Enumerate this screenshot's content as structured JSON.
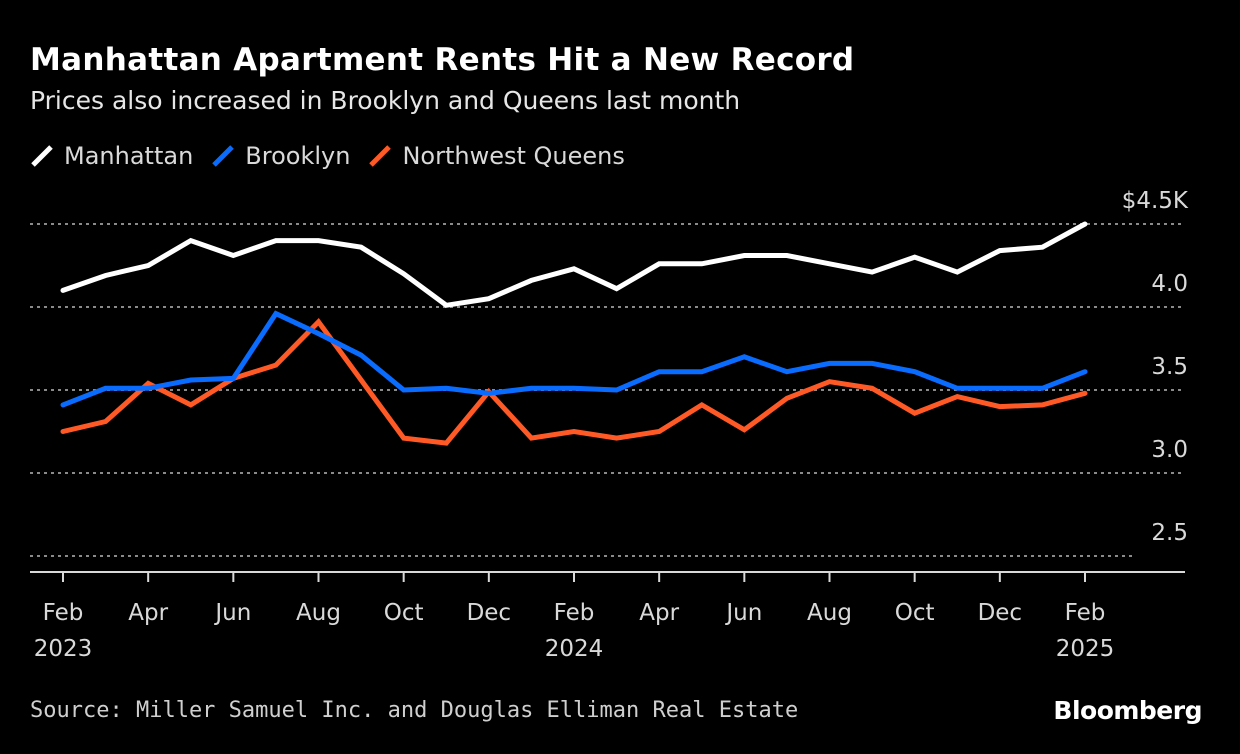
{
  "header": {
    "title": "Manhattan Apartment Rents Hit a New Record",
    "subtitle": "Prices also increased in Brooklyn and Queens last month"
  },
  "footer": {
    "source": "Source: Miller Samuel Inc. and Douglas Elliman Real Estate",
    "logo": "Bloomberg"
  },
  "chart_data": {
    "type": "line",
    "title": "Manhattan Apartment Rents Hit a New Record",
    "subtitle": "Prices also increased in Brooklyn and Queens last month",
    "legend_position": "top-left",
    "grid": true,
    "x": [
      "2023-02",
      "2023-03",
      "2023-04",
      "2023-05",
      "2023-06",
      "2023-07",
      "2023-08",
      "2023-09",
      "2023-10",
      "2023-11",
      "2023-12",
      "2024-01",
      "2024-02",
      "2024-03",
      "2024-04",
      "2024-05",
      "2024-06",
      "2024-07",
      "2024-08",
      "2024-09",
      "2024-10",
      "2024-11",
      "2024-12",
      "2025-01",
      "2025-02"
    ],
    "x_ticks": [
      {
        "x": "2023-02",
        "label": "Feb",
        "sub": "2023"
      },
      {
        "x": "2023-04",
        "label": "Apr",
        "sub": ""
      },
      {
        "x": "2023-06",
        "label": "Jun",
        "sub": ""
      },
      {
        "x": "2023-08",
        "label": "Aug",
        "sub": ""
      },
      {
        "x": "2023-10",
        "label": "Oct",
        "sub": ""
      },
      {
        "x": "2023-12",
        "label": "Dec",
        "sub": ""
      },
      {
        "x": "2024-02",
        "label": "Feb",
        "sub": "2024"
      },
      {
        "x": "2024-04",
        "label": "Apr",
        "sub": ""
      },
      {
        "x": "2024-06",
        "label": "Jun",
        "sub": ""
      },
      {
        "x": "2024-08",
        "label": "Aug",
        "sub": ""
      },
      {
        "x": "2024-10",
        "label": "Oct",
        "sub": ""
      },
      {
        "x": "2024-12",
        "label": "Dec",
        "sub": ""
      },
      {
        "x": "2025-02",
        "label": "Feb",
        "sub": "2025"
      }
    ],
    "y_ticks": [
      {
        "value": 4.5,
        "label": "$4.5K"
      },
      {
        "value": 4.0,
        "label": "4.0"
      },
      {
        "value": 3.5,
        "label": "3.5"
      },
      {
        "value": 3.0,
        "label": "3.0"
      },
      {
        "value": 2.5,
        "label": "2.5"
      }
    ],
    "ylim": [
      2.5,
      4.5
    ],
    "series": [
      {
        "name": "Manhattan",
        "color": "#ffffff",
        "values": [
          4.1,
          4.19,
          4.25,
          4.4,
          4.31,
          4.4,
          4.4,
          4.36,
          4.2,
          4.01,
          4.05,
          4.16,
          4.23,
          4.11,
          4.26,
          4.26,
          4.31,
          4.31,
          4.26,
          4.21,
          4.3,
          4.21,
          4.34,
          4.36,
          4.5
        ]
      },
      {
        "name": "Brooklyn",
        "color": "#0a6cff",
        "values": [
          3.41,
          3.51,
          3.51,
          3.56,
          3.57,
          3.96,
          3.84,
          3.71,
          3.5,
          3.51,
          3.48,
          3.51,
          3.51,
          3.5,
          3.61,
          3.61,
          3.7,
          3.61,
          3.66,
          3.66,
          3.61,
          3.51,
          3.51,
          3.51,
          3.61
        ]
      },
      {
        "name": "Northwest Queens",
        "color": "#ff5a26",
        "values": [
          3.25,
          3.31,
          3.54,
          3.41,
          3.57,
          3.65,
          3.91,
          3.56,
          3.21,
          3.18,
          3.49,
          3.21,
          3.25,
          3.21,
          3.25,
          3.41,
          3.26,
          3.45,
          3.55,
          3.51,
          3.36,
          3.46,
          3.4,
          3.41,
          3.48
        ]
      }
    ]
  }
}
